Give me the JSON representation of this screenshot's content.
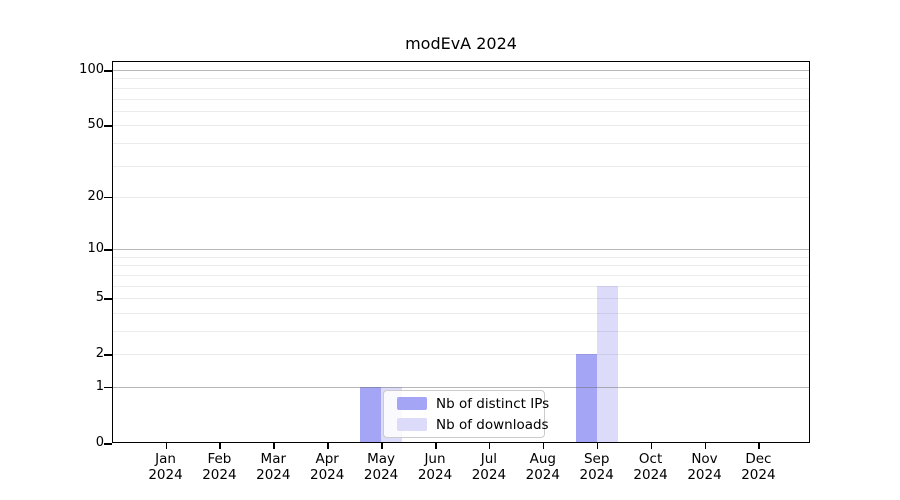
{
  "title": "modEvA 2024",
  "chart_data": {
    "type": "bar",
    "title": "modEvA 2024",
    "categories": [
      "Jan",
      "Feb",
      "Mar",
      "Apr",
      "May",
      "Jun",
      "Jul",
      "Aug",
      "Sep",
      "Oct",
      "Nov",
      "Dec"
    ],
    "year": "2024",
    "series": [
      {
        "name": "Nb of distinct IPs",
        "color": "#a5a5f6",
        "values": [
          0,
          0,
          0,
          0,
          1,
          0,
          0,
          0,
          2,
          0,
          0,
          0
        ]
      },
      {
        "name": "Nb of downloads",
        "color": "#dcdcfa",
        "values": [
          0,
          0,
          0,
          0,
          1,
          0,
          0,
          0,
          6,
          0,
          0,
          0
        ]
      }
    ],
    "y_scale": "log10(1+x)",
    "ylim": [
      0,
      112
    ],
    "y_ticks": [
      0,
      1,
      2,
      5,
      10,
      20,
      50,
      100
    ],
    "y_major_grid": [
      1,
      10,
      100
    ],
    "y_minor_grid": [
      2,
      3,
      4,
      5,
      6,
      7,
      8,
      9,
      20,
      30,
      40,
      50,
      60,
      70,
      80,
      90
    ],
    "xlabel": "",
    "ylabel": "",
    "grid": true,
    "legend_position": "bottom-center-inside"
  }
}
